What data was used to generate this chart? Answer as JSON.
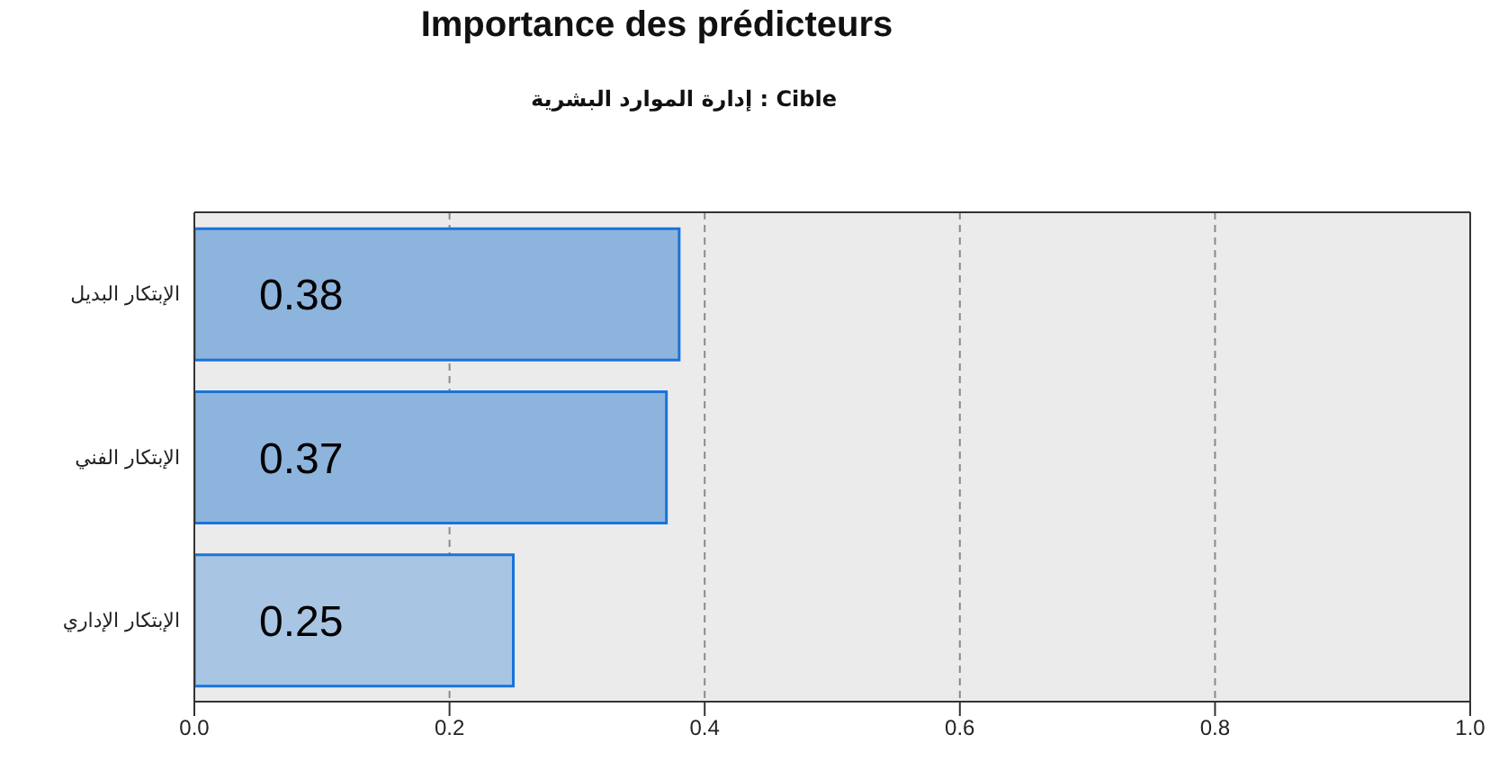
{
  "chart_data": {
    "type": "bar",
    "orientation": "horizontal",
    "title": "Importance des prédicteurs",
    "subtitle": "Cible : إدارة الموارد البشرية",
    "categories": [
      "الإبتكار البديل",
      "الإبتكار الفني",
      "الإبتكار الإداري"
    ],
    "values": [
      0.38,
      0.37,
      0.25
    ],
    "colors": [
      "#8db4dd",
      "#8db4dd",
      "#a8c5e3"
    ],
    "xlim": [
      0,
      1
    ],
    "xticks": [
      {
        "value": 0,
        "label": "0.0"
      },
      0.2,
      0.4,
      0.6,
      0.8,
      {
        "value": 1,
        "label": "1.0"
      }
    ],
    "grid": "x",
    "data_labels": true
  }
}
